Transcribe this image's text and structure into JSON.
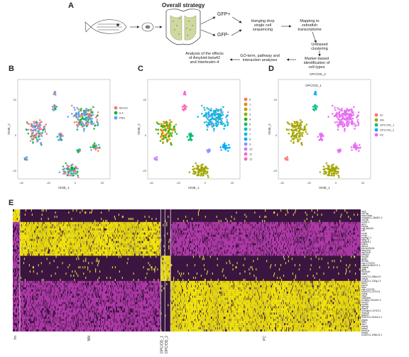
{
  "panelA": {
    "letter": "A",
    "title": "Overall strategy",
    "gfp_pos": "GFP+",
    "gfp_neg": "GFP-",
    "step_hanging": [
      "Hanging drop",
      "single cell",
      "sequencing"
    ],
    "step_mapping": [
      "Mapping to",
      "zebrafish",
      "transcriptome"
    ],
    "step_clustering": [
      "Unbiased",
      "clustering"
    ],
    "step_marker": [
      "Marker-based",
      "identification of",
      "cell types"
    ],
    "step_go": [
      "GO-term, pathway and",
      "interaction analyses"
    ],
    "step_effects": [
      "Analysis of the effects",
      "of Amyloid-beta42",
      "and Interleukin-4"
    ]
  },
  "panelB": {
    "letter": "B",
    "legend": [
      "MOCK",
      "IL4",
      "PBS"
    ],
    "legend_colors": [
      "#f8766d",
      "#00ba38",
      "#619cff"
    ],
    "xlabel": "tSNE_1",
    "ylabel": "tSNE_2",
    "xticks": [
      "-40",
      "-20",
      "0",
      "20"
    ],
    "yticks": [
      "20",
      "0",
      "-20"
    ]
  },
  "panelC": {
    "letter": "C",
    "legend": [
      "0",
      "1",
      "2",
      "3",
      "4",
      "5",
      "6",
      "7",
      "8",
      "9",
      "10",
      "11",
      "12"
    ],
    "legend_colors": [
      "#f8766d",
      "#e18a00",
      "#be9c00",
      "#8cab00",
      "#24b700",
      "#00be70",
      "#00c1ab",
      "#00bbda",
      "#00acfc",
      "#8b93ff",
      "#d575fe",
      "#f962dd",
      "#ff65ac"
    ],
    "xlabel": "tSNE_1",
    "ylabel": "tSNE_2",
    "xticks": [
      "-40",
      "-20",
      "0",
      "20"
    ],
    "yticks": [
      "20",
      "0",
      "-20"
    ]
  },
  "panelD": {
    "letter": "D",
    "legend": [
      "Im",
      "NN",
      "OPC/OD_1",
      "OPC/OD_2",
      "PC"
    ],
    "legend_colors": [
      "#f8766d",
      "#a3a500",
      "#00bf7d",
      "#00b0f6",
      "#e76bf3"
    ],
    "annot1": "OPC/OD_2",
    "annot2": "OPC/OD_1",
    "xlabel": "tSNE_1",
    "ylabel": "tSNE_2",
    "xticks": [
      "-40",
      "-20",
      "0",
      "20"
    ],
    "yticks": [
      "20",
      "0",
      "-20"
    ]
  },
  "panelE": {
    "letter": "E",
    "columns": [
      "Im",
      "NN",
      "OPC/OD_1",
      "OPC/OD_2",
      "PC"
    ],
    "genes": [
      "lcp1",
      "cd74a",
      "mhc2dab",
      "si:busm1-266f07.2",
      "cd74b",
      "ccl35.1",
      "grn1",
      "crpba",
      "zgc:66426",
      "cd7",
      "c1qb",
      "c1qa",
      "mpeg1.1",
      "fabp7a",
      "ptgdsb.1",
      "sparc",
      "apoc1",
      "wu:fc13h04",
      "fabp11a",
      "atp1a1b",
      "stxbp4",
      "lmo4b",
      "glula",
      "s100b",
      "zgc:172370",
      "cabz01084271.1",
      "mfgeb",
      "gfap",
      "slc1a2b",
      "ngfra",
      "si:ch211-286o4.6",
      "mbpb",
      "si:ch211-132g1.3",
      "fthl27",
      "plp1b",
      "mpz",
      "zgc:112076",
      "si:ch211-237l4.6",
      "cldnk",
      "olig2",
      "claudinb",
      "si:dkey-191d20.3",
      "sox10",
      "myl9b",
      "tpm4a",
      "elavl3",
      "si:busm1-57f23.1",
      "map1b",
      "gap43",
      "si:ch211-251b21.1",
      "ptgds",
      "hbr1",
      "hbr7",
      "tubb5",
      "tuba2",
      "tuba1a",
      "fosab",
      "si:ch211-195b13.1"
    ]
  }
}
